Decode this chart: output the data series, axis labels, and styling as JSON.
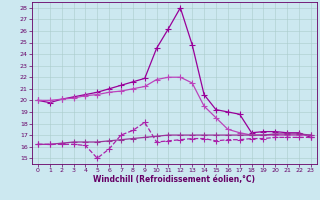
{
  "x": [
    0,
    1,
    2,
    3,
    4,
    5,
    6,
    7,
    8,
    9,
    10,
    11,
    12,
    13,
    14,
    15,
    16,
    17,
    18,
    19,
    20,
    21,
    22,
    23
  ],
  "line1": [
    20.0,
    19.8,
    20.1,
    20.3,
    20.5,
    20.7,
    21.0,
    21.3,
    21.6,
    21.9,
    24.5,
    26.2,
    28.0,
    24.8,
    20.5,
    19.2,
    19.0,
    18.8,
    17.2,
    17.3,
    17.3,
    17.2,
    17.2,
    16.8
  ],
  "line2": [
    20.0,
    20.0,
    20.1,
    20.2,
    20.4,
    20.5,
    20.7,
    20.8,
    21.0,
    21.2,
    21.8,
    22.0,
    22.0,
    21.5,
    19.5,
    18.5,
    17.5,
    17.2,
    17.0,
    17.0,
    17.0,
    17.0,
    17.0,
    17.0
  ],
  "line3": [
    16.2,
    16.2,
    16.3,
    16.4,
    16.4,
    16.4,
    16.5,
    16.6,
    16.7,
    16.8,
    16.9,
    17.0,
    17.0,
    17.0,
    17.0,
    17.0,
    17.0,
    17.0,
    17.0,
    17.0,
    17.1,
    17.1,
    17.1,
    17.0
  ],
  "line4": [
    16.2,
    16.2,
    16.2,
    16.2,
    16.1,
    15.0,
    15.8,
    17.0,
    17.4,
    18.1,
    16.4,
    16.5,
    16.6,
    16.7,
    16.7,
    16.5,
    16.6,
    16.6,
    16.7,
    16.7,
    16.8,
    16.8,
    16.8,
    16.8
  ],
  "line_color1": "#990099",
  "line_color2": "#bb44bb",
  "line_color3": "#993399",
  "line_color4": "#aa22aa",
  "bg_color": "#cce8f0",
  "grid_color": "#aacccc",
  "ylim": [
    14.5,
    28.5
  ],
  "yticks": [
    15,
    16,
    17,
    18,
    19,
    20,
    21,
    22,
    23,
    24,
    25,
    26,
    27,
    28
  ],
  "xlim": [
    -0.5,
    23.5
  ],
  "xticks": [
    0,
    1,
    2,
    3,
    4,
    5,
    6,
    7,
    8,
    9,
    10,
    11,
    12,
    13,
    14,
    15,
    16,
    17,
    18,
    19,
    20,
    21,
    22,
    23
  ],
  "xlabel": "Windchill (Refroidissement éolien,°C)",
  "marker": "+",
  "markersize": 4,
  "linewidth": 0.9,
  "tick_color": "#660066",
  "axis_color": "#660066",
  "spine_color": "#660066"
}
